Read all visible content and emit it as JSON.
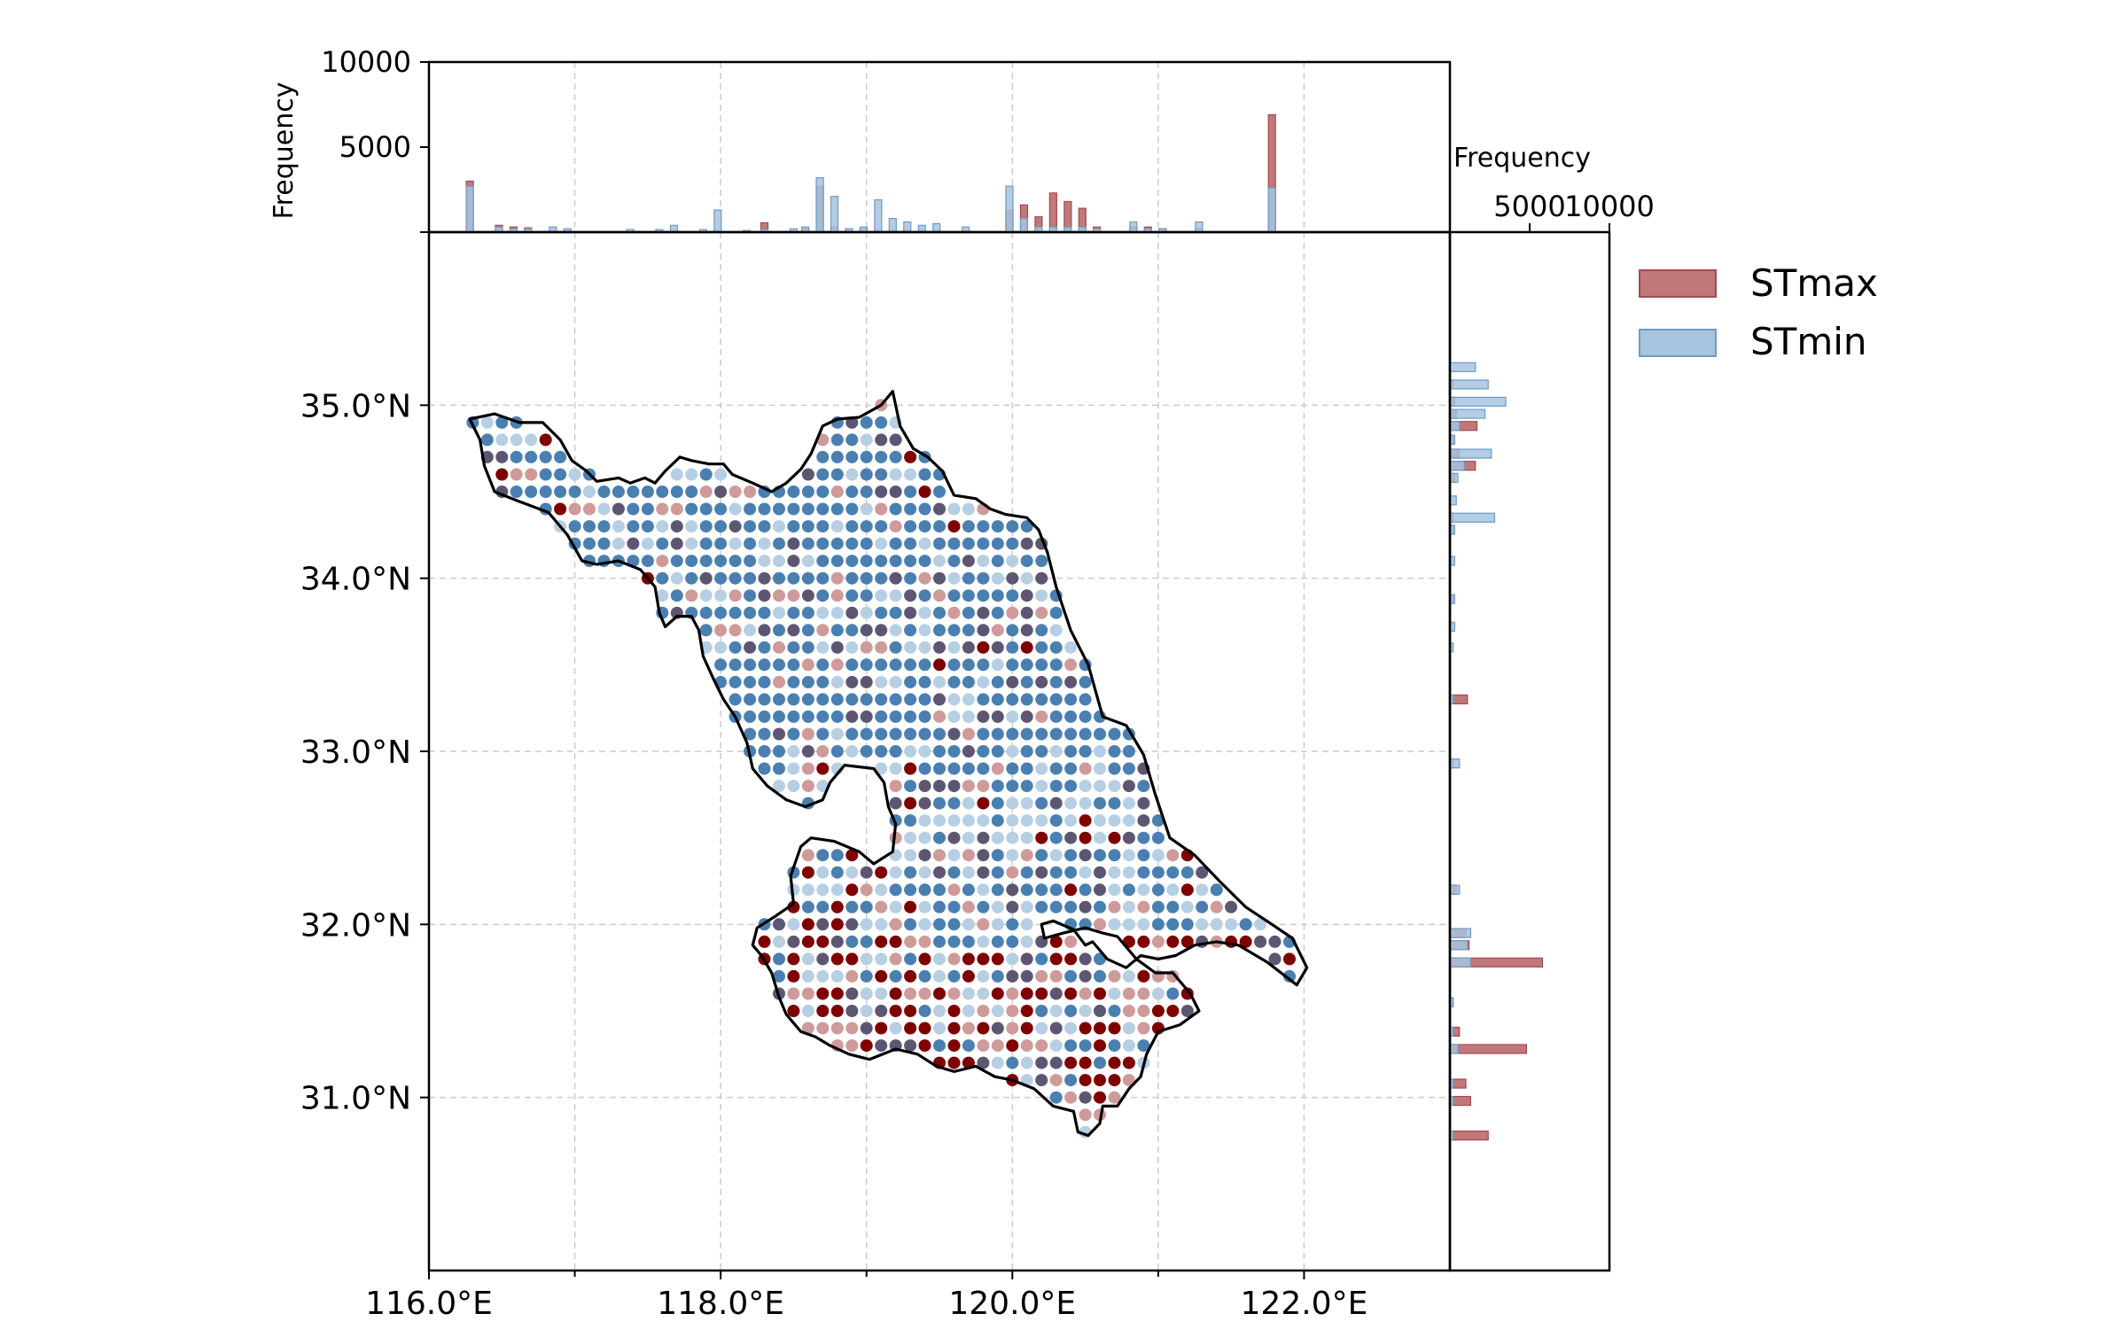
{
  "chart_data": {
    "type": "scatter",
    "title": "",
    "xlabel": "",
    "ylabel": "",
    "xlim": [
      116.0,
      123.0
    ],
    "ylim": [
      30.0,
      36.0
    ],
    "x_ticks": [
      116.0,
      118.0,
      120.0,
      122.0
    ],
    "x_tick_labels": [
      "116.0°E",
      "118.0°E",
      "120.0°E",
      "122.0°E"
    ],
    "y_ticks": [
      31.0,
      32.0,
      33.0,
      34.0,
      35.0
    ],
    "y_tick_labels": [
      "31.0°N",
      "32.0°N",
      "33.0°N",
      "34.0°N",
      "35.0°N"
    ],
    "grid": true,
    "grid_step_deg": 0.1,
    "colors": {
      "dark_red": "#7f0000",
      "light_red": "#cf9a9a",
      "dark_blue": "#4a7fb1",
      "light_blue": "#b7cfe3",
      "mixed": "#5d5673",
      "boundary": "#000000",
      "grid": "#cccccc",
      "stmax_bar": "#c0787a",
      "stmax_edge": "#a8484e",
      "stmin_bar": "#a7c4df",
      "stmin_edge": "#6c9bc8"
    },
    "top_histogram": {
      "ylabel": "Frequency",
      "ylim": [
        0,
        10000
      ],
      "y_ticks": [
        5000,
        10000
      ],
      "y_tick_labels": [
        "5000",
        "10000"
      ],
      "x_unit": "longitude",
      "bins": [
        {
          "x": 116.28,
          "STmax": 3000,
          "STmin": 2700
        },
        {
          "x": 116.48,
          "STmax": 400,
          "STmin": 300
        },
        {
          "x": 116.58,
          "STmax": 300,
          "STmin": 200
        },
        {
          "x": 116.68,
          "STmax": 250,
          "STmin": 200
        },
        {
          "x": 116.85,
          "STmax": 100,
          "STmin": 300
        },
        {
          "x": 116.95,
          "STmax": 100,
          "STmin": 200
        },
        {
          "x": 117.38,
          "STmax": 50,
          "STmin": 150
        },
        {
          "x": 117.58,
          "STmax": 80,
          "STmin": 150
        },
        {
          "x": 117.68,
          "STmax": 100,
          "STmin": 400
        },
        {
          "x": 117.88,
          "STmax": 50,
          "STmin": 150
        },
        {
          "x": 117.98,
          "STmax": 100,
          "STmin": 1300
        },
        {
          "x": 118.18,
          "STmax": 50,
          "STmin": 100
        },
        {
          "x": 118.3,
          "STmax": 550,
          "STmin": 150
        },
        {
          "x": 118.5,
          "STmax": 100,
          "STmin": 200
        },
        {
          "x": 118.58,
          "STmax": 200,
          "STmin": 300
        },
        {
          "x": 118.68,
          "STmax": 2700,
          "STmin": 3200
        },
        {
          "x": 118.78,
          "STmax": 300,
          "STmin": 2100
        },
        {
          "x": 118.88,
          "STmax": 100,
          "STmin": 200
        },
        {
          "x": 118.98,
          "STmax": 200,
          "STmin": 300
        },
        {
          "x": 119.08,
          "STmax": 100,
          "STmin": 1900
        },
        {
          "x": 119.18,
          "STmax": 100,
          "STmin": 800
        },
        {
          "x": 119.28,
          "STmax": 100,
          "STmin": 600
        },
        {
          "x": 119.38,
          "STmax": 100,
          "STmin": 400
        },
        {
          "x": 119.48,
          "STmax": 100,
          "STmin": 500
        },
        {
          "x": 119.68,
          "STmax": 100,
          "STmin": 300
        },
        {
          "x": 119.98,
          "STmax": 1300,
          "STmin": 2700
        },
        {
          "x": 120.08,
          "STmax": 1600,
          "STmin": 800
        },
        {
          "x": 120.18,
          "STmax": 900,
          "STmin": 300
        },
        {
          "x": 120.28,
          "STmax": 2300,
          "STmin": 300
        },
        {
          "x": 120.38,
          "STmax": 1800,
          "STmin": 300
        },
        {
          "x": 120.48,
          "STmax": 1400,
          "STmin": 300
        },
        {
          "x": 120.58,
          "STmax": 300,
          "STmin": 200
        },
        {
          "x": 120.83,
          "STmax": 300,
          "STmin": 600
        },
        {
          "x": 120.93,
          "STmax": 300,
          "STmin": 200
        },
        {
          "x": 121.03,
          "STmax": 200,
          "STmin": 200
        },
        {
          "x": 121.28,
          "STmax": 200,
          "STmin": 600
        },
        {
          "x": 121.78,
          "STmax": 6900,
          "STmin": 2600
        }
      ]
    },
    "right_histogram": {
      "xlabel": "Frequency",
      "xlim": [
        0,
        10000
      ],
      "x_ticks": [
        5000,
        10000
      ],
      "x_tick_labels": [
        "5000",
        "10000"
      ],
      "y_unit": "latitude",
      "bins": [
        {
          "y": 35.22,
          "STmax": 0,
          "STmin": 1600
        },
        {
          "y": 35.12,
          "STmax": 200,
          "STmin": 2400
        },
        {
          "y": 35.02,
          "STmax": 300,
          "STmin": 3500
        },
        {
          "y": 34.95,
          "STmax": 400,
          "STmin": 2200
        },
        {
          "y": 34.88,
          "STmax": 1700,
          "STmin": 600
        },
        {
          "y": 34.8,
          "STmax": 300,
          "STmin": 300
        },
        {
          "y": 34.72,
          "STmax": 600,
          "STmin": 2600
        },
        {
          "y": 34.65,
          "STmax": 1600,
          "STmin": 900
        },
        {
          "y": 34.58,
          "STmax": 300,
          "STmin": 500
        },
        {
          "y": 34.45,
          "STmax": 0,
          "STmin": 400
        },
        {
          "y": 34.35,
          "STmax": 200,
          "STmin": 2800
        },
        {
          "y": 34.28,
          "STmax": 300,
          "STmin": 300
        },
        {
          "y": 34.1,
          "STmax": 100,
          "STmin": 300
        },
        {
          "y": 33.88,
          "STmax": 200,
          "STmin": 300
        },
        {
          "y": 33.72,
          "STmax": 100,
          "STmin": 300
        },
        {
          "y": 33.6,
          "STmax": 100,
          "STmin": 200
        },
        {
          "y": 33.3,
          "STmax": 1100,
          "STmin": 200
        },
        {
          "y": 32.93,
          "STmax": 200,
          "STmin": 600
        },
        {
          "y": 32.2,
          "STmax": 400,
          "STmin": 600
        },
        {
          "y": 31.95,
          "STmax": 1000,
          "STmin": 1300
        },
        {
          "y": 31.88,
          "STmax": 1200,
          "STmin": 1100
        },
        {
          "y": 31.78,
          "STmax": 5800,
          "STmin": 1300
        },
        {
          "y": 31.55,
          "STmax": 200,
          "STmin": 200
        },
        {
          "y": 31.38,
          "STmax": 600,
          "STmin": 200
        },
        {
          "y": 31.28,
          "STmax": 4800,
          "STmin": 500
        },
        {
          "y": 31.08,
          "STmax": 1000,
          "STmin": 200
        },
        {
          "y": 30.98,
          "STmax": 1300,
          "STmin": 200
        },
        {
          "y": 30.78,
          "STmax": 2400,
          "STmin": 200
        }
      ]
    },
    "legend": {
      "placement": "outside right",
      "entries": [
        {
          "label": "STmax",
          "color": "#c0787a",
          "edge": "#a8484e"
        },
        {
          "label": "STmin",
          "color": "#a7c4df",
          "edge": "#6c9bc8"
        }
      ]
    },
    "region_boundary": [
      [
        116.28,
        34.92
      ],
      [
        116.45,
        34.95
      ],
      [
        116.62,
        34.9
      ],
      [
        116.78,
        34.9
      ],
      [
        116.9,
        34.8
      ],
      [
        116.98,
        34.68
      ],
      [
        117.08,
        34.62
      ],
      [
        117.15,
        34.56
      ],
      [
        117.3,
        34.58
      ],
      [
        117.38,
        34.55
      ],
      [
        117.48,
        34.58
      ],
      [
        117.55,
        34.55
      ],
      [
        117.62,
        34.62
      ],
      [
        117.72,
        34.7
      ],
      [
        117.8,
        34.68
      ],
      [
        117.92,
        34.66
      ],
      [
        118.02,
        34.66
      ],
      [
        118.08,
        34.6
      ],
      [
        118.22,
        34.55
      ],
      [
        118.35,
        34.5
      ],
      [
        118.45,
        34.55
      ],
      [
        118.55,
        34.63
      ],
      [
        118.62,
        34.72
      ],
      [
        118.7,
        34.88
      ],
      [
        118.8,
        34.92
      ],
      [
        118.95,
        34.93
      ],
      [
        119.1,
        35.0
      ],
      [
        119.18,
        35.08
      ],
      [
        119.23,
        34.88
      ],
      [
        119.32,
        34.75
      ],
      [
        119.42,
        34.7
      ],
      [
        119.52,
        34.62
      ],
      [
        119.6,
        34.48
      ],
      [
        119.75,
        34.46
      ],
      [
        119.85,
        34.4
      ],
      [
        119.95,
        34.37
      ],
      [
        120.1,
        34.35
      ],
      [
        120.18,
        34.28
      ],
      [
        120.24,
        34.15
      ],
      [
        120.3,
        33.95
      ],
      [
        120.4,
        33.7
      ],
      [
        120.52,
        33.5
      ],
      [
        120.62,
        33.2
      ],
      [
        120.78,
        33.15
      ],
      [
        120.9,
        32.98
      ],
      [
        120.98,
        32.75
      ],
      [
        121.08,
        32.5
      ],
      [
        121.25,
        32.4
      ],
      [
        121.42,
        32.25
      ],
      [
        121.6,
        32.1
      ],
      [
        121.78,
        32.0
      ],
      [
        121.92,
        31.92
      ],
      [
        122.02,
        31.75
      ],
      [
        121.95,
        31.65
      ],
      [
        121.75,
        31.78
      ],
      [
        121.55,
        31.88
      ],
      [
        121.4,
        31.9
      ],
      [
        121.25,
        31.88
      ],
      [
        121.12,
        31.82
      ],
      [
        121.0,
        31.8
      ],
      [
        120.88,
        31.82
      ],
      [
        120.78,
        31.75
      ],
      [
        120.65,
        31.8
      ],
      [
        120.55,
        31.9
      ],
      [
        120.5,
        31.88
      ],
      [
        120.42,
        31.97
      ],
      [
        120.28,
        32.02
      ],
      [
        120.2,
        32.0
      ],
      [
        120.22,
        31.92
      ],
      [
        120.35,
        31.95
      ],
      [
        120.5,
        31.98
      ],
      [
        120.62,
        31.95
      ],
      [
        120.72,
        31.93
      ],
      [
        120.85,
        31.8
      ],
      [
        120.98,
        31.72
      ],
      [
        121.1,
        31.72
      ],
      [
        121.22,
        31.6
      ],
      [
        121.28,
        31.5
      ],
      [
        121.15,
        31.42
      ],
      [
        121.0,
        31.38
      ],
      [
        120.92,
        31.25
      ],
      [
        120.88,
        31.12
      ],
      [
        120.8,
        31.05
      ],
      [
        120.72,
        30.95
      ],
      [
        120.62,
        30.95
      ],
      [
        120.6,
        30.85
      ],
      [
        120.52,
        30.78
      ],
      [
        120.45,
        30.8
      ],
      [
        120.42,
        30.92
      ],
      [
        120.28,
        30.95
      ],
      [
        120.15,
        31.05
      ],
      [
        120.0,
        31.1
      ],
      [
        119.88,
        31.12
      ],
      [
        119.75,
        31.18
      ],
      [
        119.6,
        31.15
      ],
      [
        119.48,
        31.18
      ],
      [
        119.35,
        31.25
      ],
      [
        119.2,
        31.28
      ],
      [
        119.02,
        31.22
      ],
      [
        118.88,
        31.25
      ],
      [
        118.75,
        31.3
      ],
      [
        118.65,
        31.35
      ],
      [
        118.55,
        31.38
      ],
      [
        118.45,
        31.48
      ],
      [
        118.4,
        31.58
      ],
      [
        118.35,
        31.72
      ],
      [
        118.28,
        31.82
      ],
      [
        118.22,
        31.88
      ],
      [
        118.25,
        31.98
      ],
      [
        118.38,
        32.05
      ],
      [
        118.5,
        32.12
      ],
      [
        118.48,
        32.28
      ],
      [
        118.55,
        32.45
      ],
      [
        118.62,
        32.5
      ],
      [
        118.78,
        32.48
      ],
      [
        118.95,
        32.42
      ],
      [
        119.05,
        32.35
      ],
      [
        119.18,
        32.42
      ],
      [
        119.2,
        32.58
      ],
      [
        119.15,
        32.68
      ],
      [
        119.12,
        32.82
      ],
      [
        119.05,
        32.9
      ],
      [
        118.85,
        32.92
      ],
      [
        118.75,
        32.82
      ],
      [
        118.7,
        32.72
      ],
      [
        118.58,
        32.68
      ],
      [
        118.45,
        32.72
      ],
      [
        118.32,
        32.8
      ],
      [
        118.22,
        32.9
      ],
      [
        118.18,
        33.05
      ],
      [
        118.1,
        33.2
      ],
      [
        118.02,
        33.3
      ],
      [
        117.95,
        33.42
      ],
      [
        117.88,
        33.55
      ],
      [
        117.85,
        33.7
      ],
      [
        117.8,
        33.78
      ],
      [
        117.7,
        33.78
      ],
      [
        117.62,
        33.72
      ],
      [
        117.58,
        33.8
      ],
      [
        117.55,
        33.95
      ],
      [
        117.45,
        34.05
      ],
      [
        117.3,
        34.1
      ],
      [
        117.15,
        34.08
      ],
      [
        117.05,
        34.1
      ],
      [
        116.95,
        34.25
      ],
      [
        116.82,
        34.38
      ],
      [
        116.6,
        34.45
      ],
      [
        116.45,
        34.5
      ],
      [
        116.38,
        34.65
      ],
      [
        116.35,
        34.8
      ],
      [
        116.28,
        34.92
      ]
    ]
  }
}
